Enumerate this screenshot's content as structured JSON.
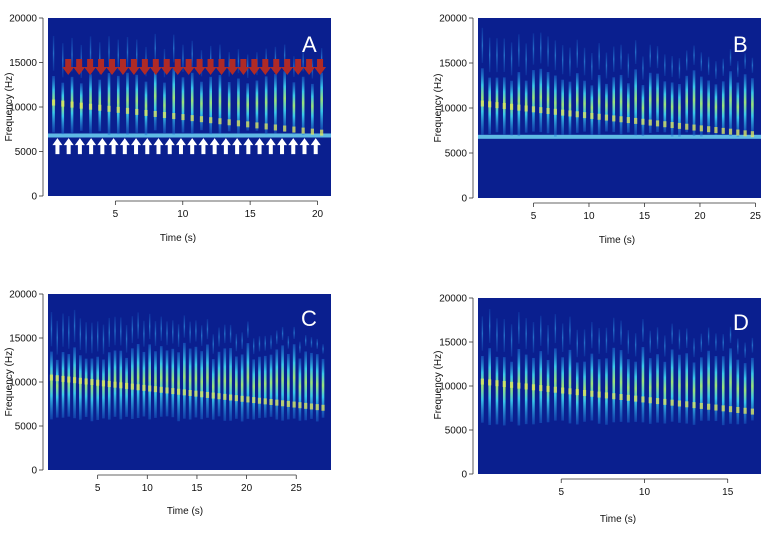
{
  "chart_data": [
    {
      "type": "heatmap",
      "panel": "A",
      "xlabel": "Time (s)",
      "ylabel": "Frequency (Hz)",
      "xlim": [
        0,
        21
      ],
      "ylim": [
        0,
        20000
      ],
      "xticks": [
        5,
        10,
        15,
        20
      ],
      "yticks": [
        0,
        5000,
        10000,
        15000,
        20000
      ],
      "note_count": 30,
      "band_hz": 6800,
      "arrows": {
        "red_down_count": 24,
        "red_down_color": "#b02a26",
        "white_up_count": 24,
        "white_up_color": "#ffffff"
      }
    },
    {
      "type": "heatmap",
      "panel": "B",
      "xlabel": "Time (s)",
      "ylabel": "Frequency (Hz)",
      "xlim": [
        0,
        25.5
      ],
      "ylim": [
        0,
        20000
      ],
      "xticks": [
        5,
        10,
        15,
        20,
        25
      ],
      "yticks": [
        0,
        5000,
        10000,
        15000,
        20000
      ],
      "note_count": 38,
      "band_hz": 6800
    },
    {
      "type": "heatmap",
      "panel": "C",
      "xlabel": "Time (s)",
      "ylabel": "Frequency (Hz)",
      "xlim": [
        0,
        28.5
      ],
      "ylim": [
        0,
        20000
      ],
      "xticks": [
        5,
        10,
        15,
        20,
        25
      ],
      "yticks": [
        0,
        5000,
        10000,
        15000,
        20000
      ],
      "note_count": 48,
      "band_hz": 0
    },
    {
      "type": "heatmap",
      "panel": "D",
      "xlabel": "Time (s)",
      "ylabel": "Frequency (Hz)",
      "xlim": [
        0,
        17
      ],
      "ylim": [
        0,
        20000
      ],
      "xticks": [
        5,
        10,
        15
      ],
      "yticks": [
        0,
        5000,
        10000,
        15000,
        20000
      ],
      "note_count": 38,
      "band_hz": 0
    }
  ],
  "colors": {
    "background": "#0a1f8f",
    "note_low": "#1e74d6",
    "note_mid": "#39c7e8",
    "note_hot": "#e4e85a",
    "band": "#6fd6f4"
  }
}
